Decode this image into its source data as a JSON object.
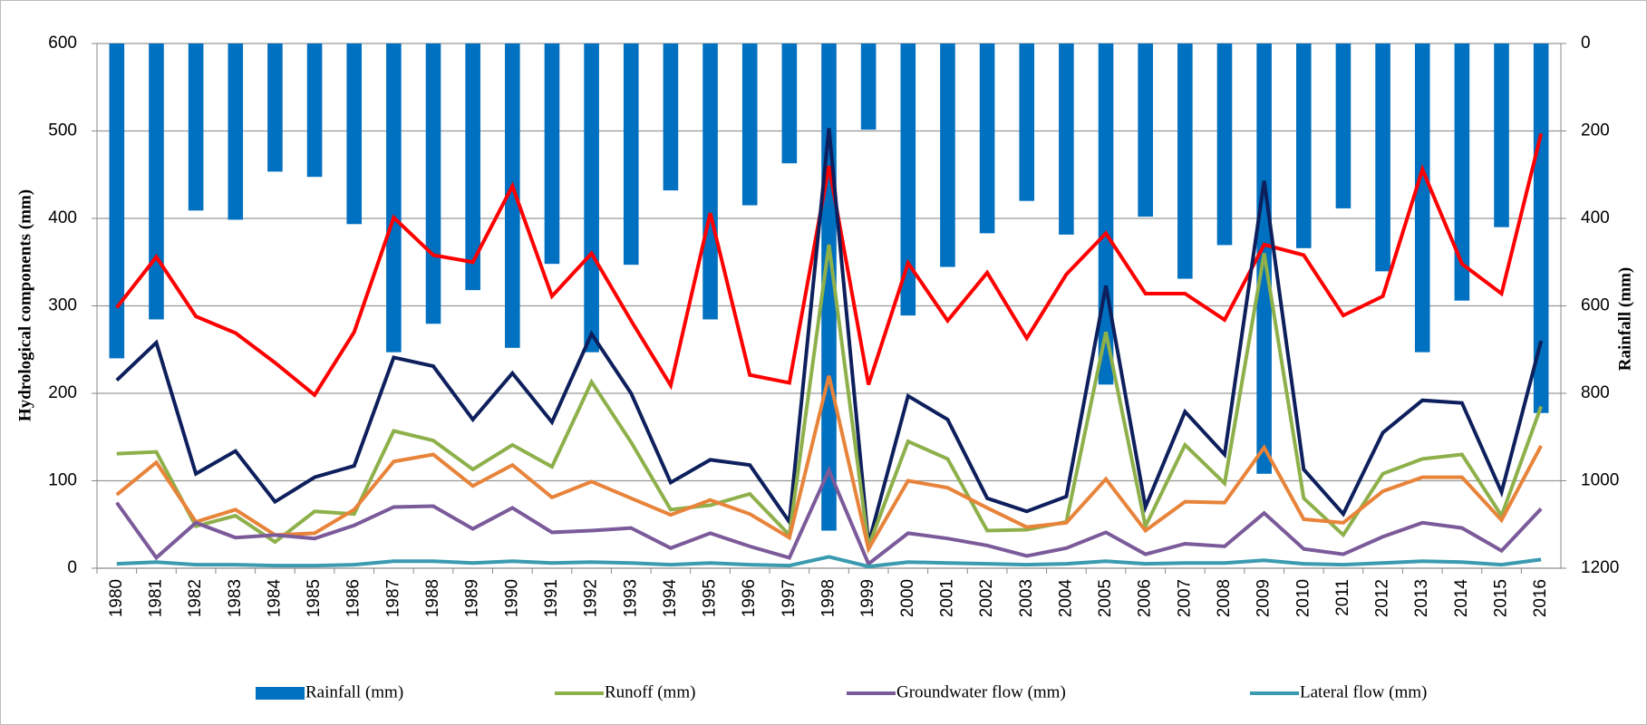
{
  "chart_data": {
    "type": "combo",
    "y_label": "Hydrological components (mm)",
    "y2_label": "Rainfall (mm)",
    "categories": [
      "1980",
      "1981",
      "1982",
      "1983",
      "1984",
      "1985",
      "1986",
      "1987",
      "1988",
      "1989",
      "1990",
      "1991",
      "1992",
      "1993",
      "1994",
      "1995",
      "1996",
      "1997",
      "1998",
      "1999",
      "2000",
      "2001",
      "2002",
      "2003",
      "2004",
      "2005",
      "2006",
      "2007",
      "2008",
      "2009",
      "2010",
      "2011",
      "2012",
      "2013",
      "2014",
      "2015",
      "2016"
    ],
    "ylim": [
      0,
      600
    ],
    "yticks": [
      0,
      100,
      200,
      300,
      400,
      500,
      600
    ],
    "y2lim": [
      0,
      1200
    ],
    "y2ticks": [
      0,
      200,
      400,
      600,
      800,
      1000,
      1200
    ],
    "y2_inverted": true,
    "grid": true,
    "legend": "bottom",
    "series": [
      {
        "name": "Rainfall (mm)",
        "type": "bar",
        "axis": "y2",
        "color": "#0070c0",
        "values": [
          720,
          631,
          382,
          403,
          293,
          305,
          413,
          706,
          641,
          564,
          696,
          504,
          706,
          506,
          336,
          631,
          370,
          274,
          1114,
          197,
          622,
          511,
          434,
          360,
          437,
          780,
          396,
          538,
          461,
          984,
          468,
          377,
          521,
          706,
          588,
          420,
          845
        ]
      },
      {
        "type": "line",
        "color": "#ff0000",
        "values": [
          298,
          356,
          288,
          269,
          235,
          198,
          270,
          401,
          358,
          350,
          437,
          311,
          360,
          283,
          209,
          406,
          221,
          212,
          460,
          210,
          349,
          283,
          338,
          263,
          336,
          383,
          314,
          314,
          284,
          370,
          358,
          289,
          311,
          456,
          348,
          314,
          497
        ]
      },
      {
        "type": "line",
        "color": "#0d1f5c",
        "values": [
          215,
          258,
          108,
          134,
          76,
          104,
          117,
          241,
          231,
          170,
          223,
          167,
          268,
          200,
          98,
          124,
          118,
          53,
          503,
          28,
          197,
          170,
          80,
          65,
          82,
          323,
          70,
          179,
          130,
          443,
          113,
          62,
          155,
          192,
          189,
          87,
          260
        ]
      },
      {
        "name": "Runoff (mm)",
        "type": "line",
        "color": "#8eb04a",
        "values": [
          131,
          133,
          48,
          60,
          30,
          65,
          62,
          157,
          146,
          113,
          141,
          116,
          213,
          144,
          67,
          72,
          85,
          38,
          370,
          25,
          145,
          125,
          43,
          44,
          53,
          270,
          48,
          141,
          97,
          360,
          80,
          38,
          108,
          125,
          130,
          60,
          185
        ]
      },
      {
        "type": "line",
        "color": "#e8833a",
        "values": [
          84,
          121,
          53,
          67,
          38,
          40,
          67,
          122,
          130,
          94,
          118,
          81,
          99,
          80,
          61,
          78,
          62,
          35,
          220,
          22,
          100,
          92,
          69,
          47,
          52,
          102,
          43,
          76,
          75,
          138,
          56,
          52,
          88,
          104,
          104,
          55,
          140
        ]
      },
      {
        "name": "Groundwater flow (mm)",
        "type": "line",
        "color": "#7b5a9a",
        "values": [
          75,
          12,
          52,
          35,
          38,
          34,
          49,
          70,
          71,
          45,
          69,
          41,
          43,
          46,
          23,
          40,
          25,
          12,
          112,
          5,
          40,
          34,
          26,
          14,
          23,
          41,
          16,
          28,
          25,
          63,
          22,
          16,
          36,
          52,
          46,
          20,
          68
        ]
      },
      {
        "name": "Lateral flow (mm)",
        "type": "line",
        "color": "#3a9bb0",
        "values": [
          5,
          7,
          4,
          4,
          3,
          3,
          4,
          8,
          8,
          6,
          8,
          6,
          7,
          6,
          4,
          6,
          4,
          3,
          13,
          2,
          7,
          6,
          5,
          4,
          5,
          8,
          5,
          6,
          6,
          9,
          5,
          4,
          6,
          8,
          7,
          4,
          10
        ]
      }
    ]
  }
}
